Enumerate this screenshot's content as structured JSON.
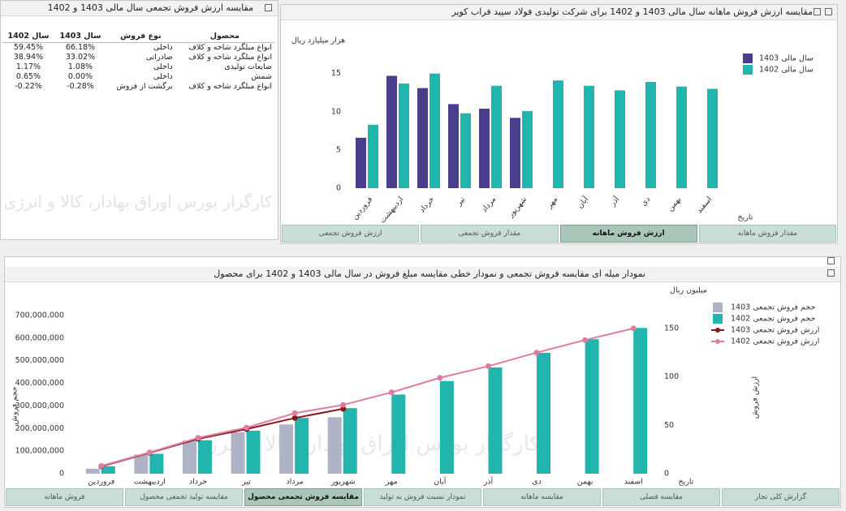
{
  "watermark": "کارگزار بورس اوراق بهادار، کالا و انرژی",
  "table_panel": {
    "title": "مقایسه ارزش فروش تجمعی سال مالی 1403 و 1402",
    "header": [
      "محصول",
      "نوع فروش",
      "سال 1403",
      "سال 1402"
    ],
    "rows": [
      [
        "انواع مبلگرد شاخه و کلاف",
        "داخلی",
        "66.18%",
        "59.45%"
      ],
      [
        "انواع مبلگرد شاخه و کلاف",
        "صادراتی",
        "33.02%",
        "38.94%"
      ],
      [
        "ضایعات تولیدی",
        "داخلی",
        "1.08%",
        "1.17%"
      ],
      [
        "شمش",
        "داخلی",
        "0.00%",
        "0.65%"
      ],
      [
        "انواع مبلگرد شاخه و کلاف",
        "برگشت از فروش",
        "-0.28%",
        "-0.22%"
      ]
    ]
  },
  "top_tabs": [
    "ارزش فروش تجمعی",
    "مقدار فروش تجمعی",
    "ارزش فروش ماهانه",
    "مقدار فروش ماهانه"
  ],
  "top_active_tab": 2,
  "bottom_tabs": [
    "فروش ماهانه",
    "مقایسه تولید تجمعی محصول",
    "مقایسه فروش تجمعی محصول",
    "نمودار نسبت فروش به تولید",
    "مقایسه ماهانه",
    "مقایسه فصلی",
    "گزارش کلی تجار"
  ],
  "bottom_active_tab": 2,
  "chart_data": [
    {
      "type": "bar",
      "title": "مقایسه ارزش فروش ماهانه سال مالی 1403 و 1402 برای شرکت تولیدی فولاد سپید فراب کویر",
      "y_label": "هزار میلیارد ریال",
      "x_label": "تاریخ",
      "categories": [
        "فروردین",
        "اردیبهشت",
        "خرداد",
        "تیر",
        "مرداد",
        "شهریور",
        "مهر",
        "آبان",
        "آذر",
        "دی",
        "بهمن",
        "اسفند"
      ],
      "series": [
        {
          "name": "سال مالی 1403",
          "color": "#4a3e8c",
          "values": [
            6.6,
            14.7,
            13.1,
            11.0,
            10.4,
            9.2,
            null,
            null,
            null,
            null,
            null,
            null
          ]
        },
        {
          "name": "سال مالی 1402",
          "color": "#22b5ad",
          "values": [
            8.3,
            13.7,
            15.0,
            9.8,
            13.4,
            10.1,
            14.1,
            13.4,
            12.8,
            13.9,
            13.3,
            13.0
          ]
        }
      ],
      "ylim": [
        0,
        19
      ],
      "yticks": [
        0,
        5,
        10,
        15
      ],
      "grid": false
    },
    {
      "type": "combo",
      "title": "نمودار میله ای مقایسه فروش تجمعی و نمودار خطی مقایسه مبلغ فروش در سال مالی 1403 و 1402 برای محصول",
      "y_label": "حجم فروش",
      "y2_label": "ارزش فروش",
      "y2_unit": "میلیون ریال",
      "x_label": "تاریخ",
      "categories": [
        "فروردین",
        "اردیبهشت",
        "خرداد",
        "تیر",
        "مرداد",
        "شهریور",
        "مهر",
        "آبان",
        "آذر",
        "دی",
        "بهمن",
        "اسفند"
      ],
      "series": [
        {
          "name": "حجم فروش تجمعی  1403",
          "type": "bar",
          "color": "#aeb3c6",
          "values": [
            22000000,
            85000000,
            147000000,
            183000000,
            218000000,
            250000000,
            null,
            null,
            null,
            null,
            null,
            null
          ]
        },
        {
          "name": "حجم فروش تجمعی 1402",
          "type": "bar",
          "color": "#22b5ad",
          "values": [
            33000000,
            88000000,
            148000000,
            190000000,
            247000000,
            290000000,
            350000000,
            410000000,
            470000000,
            535000000,
            595000000,
            645000000
          ]
        },
        {
          "name": "ارزش فروش تجمعی 1403",
          "type": "line",
          "axis": "y2",
          "color": "#8b1414",
          "values": [
            7.5,
            21.5,
            36,
            46,
            57.5,
            67,
            null,
            null,
            null,
            null,
            null,
            null
          ]
        },
        {
          "name": "ارزش فروش تجمعی 1402",
          "type": "line",
          "axis": "y2",
          "color": "#e07ba3",
          "values": [
            8,
            22,
            37,
            47.5,
            62.5,
            71,
            84,
            99,
            111,
            125,
            138,
            150
          ]
        }
      ],
      "ylim": [
        0,
        750000000
      ],
      "yticks": [
        0,
        {
          "value": 100000000,
          "label": "100,000,000"
        },
        {
          "value": 200000000,
          "label": "200,000,000"
        },
        {
          "value": 300000000,
          "label": "300,000,000"
        },
        {
          "value": 400000000,
          "label": "400,000,000"
        },
        {
          "value": 500000000,
          "label": "500,000,000"
        },
        {
          "value": 600000000,
          "label": "600,000,000"
        },
        {
          "value": 700000000,
          "label": "700,000,000"
        }
      ],
      "y2lim": [
        0,
        175
      ],
      "y2ticks": [
        0,
        50,
        100,
        150
      ],
      "grid": false
    }
  ]
}
